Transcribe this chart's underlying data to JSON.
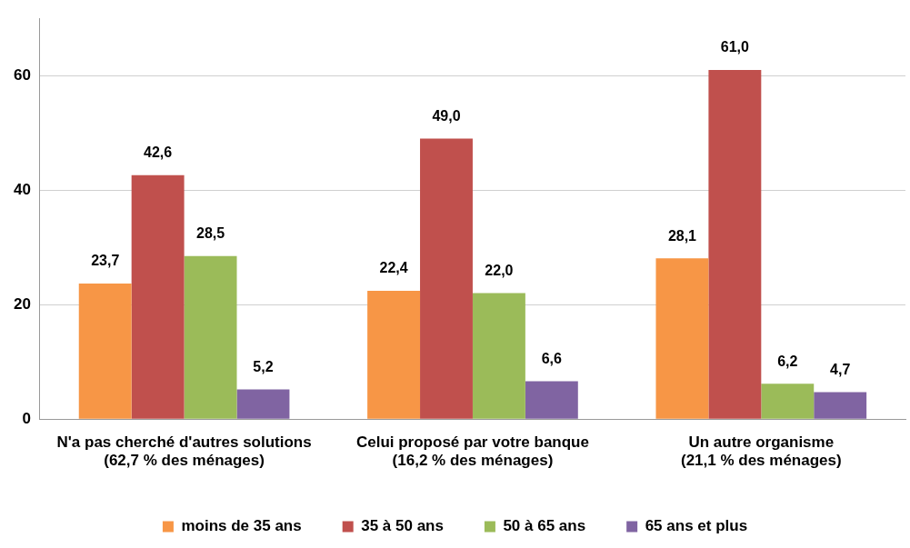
{
  "chart_data": {
    "type": "bar",
    "categories": [
      "N'a pas cherché d'autres solutions\n(62,7 % des ménages)",
      "Celui proposé par votre banque\n(16,2 % des ménages)",
      "Un autre organisme\n(21,1 % des ménages)"
    ],
    "series": [
      {
        "name": "moins de 35 ans",
        "color": "#f79646",
        "values": [
          23.7,
          22.4,
          28.1
        ],
        "value_labels": [
          "23,7",
          "22,4",
          "28,1"
        ]
      },
      {
        "name": "35 à 50 ans",
        "color": "#c0504d",
        "values": [
          42.6,
          49.0,
          61.0
        ],
        "value_labels": [
          "42,6",
          "49,0",
          "61,0"
        ]
      },
      {
        "name": "50 à 65 ans",
        "color": "#9bbb59",
        "values": [
          28.5,
          22.0,
          6.2
        ],
        "value_labels": [
          "28,5",
          "22,0",
          "6,2"
        ]
      },
      {
        "name": "65 ans et plus",
        "color": "#8064a2",
        "values": [
          5.2,
          6.6,
          4.7
        ],
        "value_labels": [
          "5,2",
          "6,6",
          "4,7"
        ]
      }
    ],
    "ylim": [
      0,
      70
    ],
    "yticks": [
      0,
      20,
      40,
      60
    ],
    "grid": "y",
    "legend": "bottom"
  }
}
